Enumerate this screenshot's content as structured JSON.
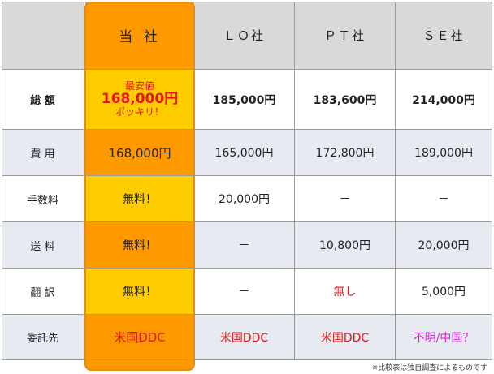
{
  "header": {
    "ours": "当 社",
    "lo": "ＬＯ社",
    "pt": "ＰＴ社",
    "se": "ＳＥ社"
  },
  "rows": {
    "total": {
      "label": "総 額",
      "ours_top": "最安値",
      "ours_main": "168,000円",
      "ours_bottom": "ポッキリ！",
      "lo": "185,000円",
      "pt": "183,600円",
      "se": "214,000円"
    },
    "fee": {
      "label": "費 用",
      "ours": "168,000円",
      "lo": "165,000円",
      "pt": "172,800円",
      "se": "189,000円"
    },
    "commission": {
      "label": "手数料",
      "ours": "無料！",
      "lo": "20,000円",
      "pt": "－",
      "se": "－"
    },
    "shipping": {
      "label": "送 料",
      "ours": "無料！",
      "lo": "－",
      "pt": "10,800円",
      "se": "20,000円"
    },
    "translation": {
      "label": "翻 訳",
      "ours": "無料！",
      "lo": "－",
      "pt": "無し",
      "se": "5,000円"
    },
    "contractor": {
      "label": "委託先",
      "ours": "米国DDC",
      "lo": "米国DDC",
      "pt": "米国DDC",
      "se": "不明/中国？"
    }
  },
  "footnote": "※比較表は独自調査によるものです",
  "colors": {
    "ours_dark": "#ff9900",
    "ours_light": "#ffcc00",
    "header_bg": "#d9d9d9",
    "band_bg": "#e8eaf2",
    "highlight_red": "#e51616",
    "highlight_magenta": "#e020d8"
  }
}
